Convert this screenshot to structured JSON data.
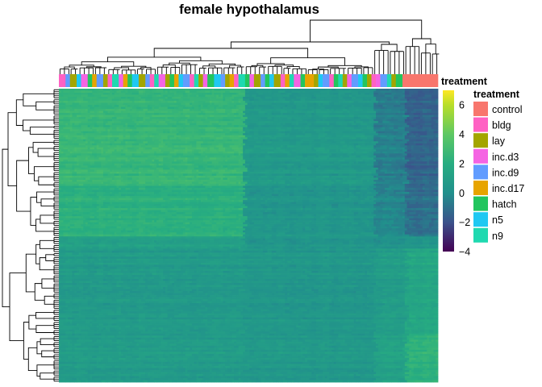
{
  "chart_data": {
    "type": "heatmap",
    "title": "female hypothalamus",
    "annotation_label": "treatment",
    "colorbar": {
      "ticks": [
        6,
        4,
        2,
        0,
        -2,
        -4
      ],
      "range": [
        -4,
        7
      ],
      "stops": [
        {
          "v": -4,
          "color": "#440154"
        },
        {
          "v": -2,
          "color": "#3b528b"
        },
        {
          "v": 0,
          "color": "#21908c"
        },
        {
          "v": 2,
          "color": "#27ad81"
        },
        {
          "v": 4,
          "color": "#5dc863"
        },
        {
          "v": 6,
          "color": "#b8de29"
        },
        {
          "v": 7,
          "color": "#fde725"
        }
      ]
    },
    "legend": {
      "title": "treatment",
      "entries": [
        {
          "label": "control",
          "color": "#F8766D"
        },
        {
          "label": "bldg",
          "color": "#FF61C3"
        },
        {
          "label": "lay",
          "color": "#A3A500"
        },
        {
          "label": "inc.d3",
          "color": "#F564E3"
        },
        {
          "label": "inc.d9",
          "color": "#619CFF"
        },
        {
          "label": "inc.d17",
          "color": "#E7A400"
        },
        {
          "label": "hatch",
          "color": "#22C55E"
        },
        {
          "label": "n5",
          "color": "#1FC8F2"
        },
        {
          "label": "n9",
          "color": "#1FD9B0"
        }
      ]
    },
    "column_blocks": [
      {
        "treatment": "bldg",
        "count": 3
      },
      {
        "treatment": "inc.d9",
        "count": 2
      },
      {
        "treatment": "lay",
        "count": 3
      },
      {
        "treatment": "n5",
        "count": 2
      },
      {
        "treatment": "inc.d3",
        "count": 3
      },
      {
        "treatment": "hatch",
        "count": 2
      },
      {
        "treatment": "inc.d17",
        "count": 2
      },
      {
        "treatment": "inc.d9",
        "count": 3
      },
      {
        "treatment": "lay",
        "count": 2
      },
      {
        "treatment": "bldg",
        "count": 2
      },
      {
        "treatment": "n9",
        "count": 3
      },
      {
        "treatment": "inc.d3",
        "count": 2
      },
      {
        "treatment": "inc.d17",
        "count": 2
      },
      {
        "treatment": "hatch",
        "count": 2
      },
      {
        "treatment": "n5",
        "count": 3
      },
      {
        "treatment": "lay",
        "count": 3
      },
      {
        "treatment": "inc.d9",
        "count": 2
      },
      {
        "treatment": "bldg",
        "count": 2
      },
      {
        "treatment": "n9",
        "count": 2
      },
      {
        "treatment": "inc.d3",
        "count": 3
      },
      {
        "treatment": "lay",
        "count": 2
      },
      {
        "treatment": "hatch",
        "count": 2
      },
      {
        "treatment": "inc.d17",
        "count": 2
      },
      {
        "treatment": "n5",
        "count": 2
      },
      {
        "treatment": "inc.d9",
        "count": 3
      },
      {
        "treatment": "bldg",
        "count": 2
      },
      {
        "treatment": "n9",
        "count": 2
      },
      {
        "treatment": "lay",
        "count": 2
      },
      {
        "treatment": "inc.d3",
        "count": 2
      },
      {
        "treatment": "hatch",
        "count": 3
      },
      {
        "treatment": "n5",
        "count": 3
      },
      {
        "treatment": "inc.d9",
        "count": 2
      },
      {
        "treatment": "lay",
        "count": 2
      },
      {
        "treatment": "inc.d17",
        "count": 2
      },
      {
        "treatment": "bldg",
        "count": 2
      },
      {
        "treatment": "n9",
        "count": 3
      },
      {
        "treatment": "hatch",
        "count": 2
      },
      {
        "treatment": "inc.d3",
        "count": 2
      },
      {
        "treatment": "lay",
        "count": 3
      },
      {
        "treatment": "inc.d9",
        "count": 2
      },
      {
        "treatment": "hatch",
        "count": 2
      },
      {
        "treatment": "n5",
        "count": 2
      },
      {
        "treatment": "lay",
        "count": 3
      },
      {
        "treatment": "bldg",
        "count": 2
      },
      {
        "treatment": "inc.d17",
        "count": 2
      },
      {
        "treatment": "n9",
        "count": 2
      },
      {
        "treatment": "inc.d3",
        "count": 3
      },
      {
        "treatment": "hatch",
        "count": 2
      },
      {
        "treatment": "inc.d17",
        "count": 4
      },
      {
        "treatment": "lay",
        "count": 2
      },
      {
        "treatment": "n5",
        "count": 2
      },
      {
        "treatment": "inc.d9",
        "count": 3
      },
      {
        "treatment": "bldg",
        "count": 2
      },
      {
        "treatment": "hatch",
        "count": 2
      },
      {
        "treatment": "n9",
        "count": 2
      },
      {
        "treatment": "lay",
        "count": 2
      },
      {
        "treatment": "inc.d3",
        "count": 2
      },
      {
        "treatment": "inc.d9",
        "count": 3
      },
      {
        "treatment": "n5",
        "count": 2
      },
      {
        "treatment": "hatch",
        "count": 2
      },
      {
        "treatment": "lay",
        "count": 2
      },
      {
        "treatment": "bldg",
        "count": 2
      },
      {
        "treatment": "inc.d3",
        "count": 2
      },
      {
        "treatment": "inc.d9",
        "count": 3
      },
      {
        "treatment": "n9",
        "count": 2
      },
      {
        "treatment": "lay",
        "count": 2
      },
      {
        "treatment": "hatch",
        "count": 3
      },
      {
        "treatment": "control",
        "count": 16
      }
    ],
    "column_zones": [
      {
        "columns": 83,
        "value": 2.0
      },
      {
        "columns": 59,
        "value": 1.0
      },
      {
        "columns": 14,
        "value": -0.5
      },
      {
        "columns": 16,
        "value": -1.5
      }
    ],
    "row_bands": [
      {
        "rows": 48,
        "values": [
          2.6,
          0.6,
          -0.6,
          -1.4
        ]
      },
      {
        "rows": 25,
        "values": [
          2.2,
          0.4,
          -0.3,
          -1.0
        ]
      },
      {
        "rows": 6,
        "values": [
          1.2,
          0.5,
          0.3,
          0.6
        ]
      },
      {
        "rows": 42,
        "values": [
          0.7,
          0.5,
          0.9,
          1.6
        ]
      },
      {
        "rows": 24,
        "values": [
          0.8,
          0.6,
          1.2,
          2.4
        ]
      }
    ]
  }
}
